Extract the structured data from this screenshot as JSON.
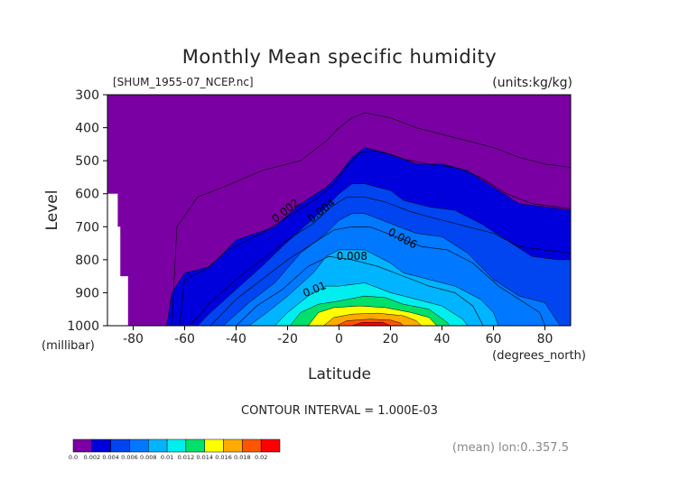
{
  "chart_data": {
    "type": "contour",
    "title": "Monthly Mean specific humidity",
    "file_label": "[SHUM_1955-07_NCEP.nc]",
    "units_label": "(units:kg/kg)",
    "xlabel": "Latitude",
    "ylabel": "Level",
    "x_unit_label": "(degrees_north)",
    "y_unit_label": "(millibar)",
    "xlim": [
      -90,
      90
    ],
    "ylim": [
      1000,
      300
    ],
    "x_ticks": [
      -80,
      -60,
      -40,
      -20,
      0,
      20,
      40,
      60,
      80
    ],
    "y_ticks": [
      300,
      400,
      500,
      600,
      700,
      800,
      900,
      1000
    ],
    "contour_interval_text": "CONTOUR INTERVAL = 1.000E-03",
    "footer_note": "(mean) lon:0..357.5",
    "contour_labels": [
      {
        "text": "0.002",
        "x": -20,
        "y": 660,
        "angle": -38
      },
      {
        "text": "0.004",
        "x": -6,
        "y": 660,
        "angle": -38
      },
      {
        "text": "0.006",
        "x": 24,
        "y": 745,
        "angle": 28
      },
      {
        "text": "0.008",
        "x": 5,
        "y": 800,
        "angle": 0
      },
      {
        "text": "0.01",
        "x": -9,
        "y": 900,
        "angle": -22
      }
    ],
    "colorbar": {
      "labels": [
        "0.0",
        "0.002",
        "0.004",
        "0.006",
        "0.008",
        "0.01",
        "0.012",
        "0.014",
        "0.016",
        "0.018",
        "0.02"
      ],
      "colors": [
        "#7b00a3",
        "#0000dd",
        "#0045f0",
        "#0078ff",
        "#00b4ff",
        "#00eeee",
        "#00e06a",
        "#ffff00",
        "#ffaa00",
        "#ff5500",
        "#ff0000"
      ]
    },
    "levels": [
      {
        "v": 0.001,
        "color": "#0000dd",
        "poly": [
          [
            -67,
            1000
          ],
          [
            -65,
            900
          ],
          [
            -60,
            840
          ],
          [
            -50,
            820
          ],
          [
            -40,
            740
          ],
          [
            -25,
            700
          ],
          [
            -15,
            630
          ],
          [
            -5,
            580
          ],
          [
            0,
            540
          ],
          [
            5,
            490
          ],
          [
            10,
            460
          ],
          [
            20,
            480
          ],
          [
            30,
            510
          ],
          [
            40,
            510
          ],
          [
            50,
            530
          ],
          [
            60,
            580
          ],
          [
            70,
            630
          ],
          [
            80,
            640
          ],
          [
            90,
            650
          ],
          [
            90,
            1000
          ]
        ]
      },
      {
        "v": 0.002,
        "color": "#0045f0",
        "poly": [
          [
            -55,
            1000
          ],
          [
            -50,
            960
          ],
          [
            -40,
            890
          ],
          [
            -30,
            820
          ],
          [
            -22,
            760
          ],
          [
            -15,
            710
          ],
          [
            -5,
            640
          ],
          [
            0,
            600
          ],
          [
            5,
            570
          ],
          [
            10,
            570
          ],
          [
            20,
            590
          ],
          [
            25,
            620
          ],
          [
            35,
            640
          ],
          [
            45,
            650
          ],
          [
            55,
            690
          ],
          [
            65,
            740
          ],
          [
            75,
            790
          ],
          [
            85,
            800
          ],
          [
            90,
            800
          ],
          [
            90,
            1000
          ]
        ]
      },
      {
        "v": 0.003,
        "color": "#0078ff",
        "poly": [
          [
            -45,
            1000
          ],
          [
            -35,
            930
          ],
          [
            -25,
            870
          ],
          [
            -15,
            780
          ],
          [
            -5,
            720
          ],
          [
            0,
            680
          ],
          [
            5,
            660
          ],
          [
            10,
            660
          ],
          [
            20,
            690
          ],
          [
            30,
            720
          ],
          [
            40,
            730
          ],
          [
            50,
            780
          ],
          [
            60,
            860
          ],
          [
            70,
            910
          ],
          [
            80,
            930
          ],
          [
            85,
            990
          ],
          [
            86,
            1000
          ]
        ]
      },
      {
        "v": 0.004,
        "color": "#00b4ff",
        "poly": [
          [
            -35,
            1000
          ],
          [
            -28,
            960
          ],
          [
            -20,
            910
          ],
          [
            -10,
            840
          ],
          [
            -5,
            790
          ],
          [
            0,
            770
          ],
          [
            10,
            770
          ],
          [
            20,
            810
          ],
          [
            25,
            840
          ],
          [
            35,
            860
          ],
          [
            45,
            880
          ],
          [
            55,
            920
          ],
          [
            60,
            960
          ],
          [
            62,
            1000
          ]
        ]
      },
      {
        "v": 0.005,
        "color": "#00eeee",
        "poly": [
          [
            -25,
            1000
          ],
          [
            -20,
            960
          ],
          [
            -12,
            910
          ],
          [
            -5,
            880
          ],
          [
            0,
            880
          ],
          [
            10,
            870
          ],
          [
            20,
            900
          ],
          [
            30,
            920
          ],
          [
            40,
            940
          ],
          [
            48,
            980
          ],
          [
            50,
            1000
          ]
        ]
      },
      {
        "v": 0.006,
        "color": "#00e06a",
        "poly": [
          [
            -19,
            1000
          ],
          [
            -15,
            960
          ],
          [
            -8,
            935
          ],
          [
            0,
            925
          ],
          [
            10,
            910
          ],
          [
            18,
            915
          ],
          [
            25,
            935
          ],
          [
            35,
            950
          ],
          [
            42,
            990
          ],
          [
            43,
            1000
          ]
        ]
      },
      {
        "v": 0.007,
        "color": "#ffff00",
        "poly": [
          [
            -12,
            1000
          ],
          [
            -8,
            960
          ],
          [
            -2,
            945
          ],
          [
            8,
            940
          ],
          [
            18,
            945
          ],
          [
            28,
            960
          ],
          [
            35,
            975
          ],
          [
            38,
            1000
          ]
        ]
      },
      {
        "v": 0.008,
        "color": "#ffaa00",
        "poly": [
          [
            -6,
            1000
          ],
          [
            -2,
            975
          ],
          [
            5,
            965
          ],
          [
            15,
            962
          ],
          [
            25,
            970
          ],
          [
            30,
            985
          ],
          [
            32,
            1000
          ]
        ]
      },
      {
        "v": 0.009,
        "color": "#ff5500",
        "poly": [
          [
            -1,
            1000
          ],
          [
            3,
            985
          ],
          [
            12,
            980
          ],
          [
            20,
            983
          ],
          [
            24,
            992
          ],
          [
            25,
            1000
          ]
        ]
      },
      {
        "v": 0.01,
        "color": "#ff0000",
        "poly": [
          [
            5,
            1000
          ],
          [
            9,
            990
          ],
          [
            17,
            990
          ],
          [
            20,
            1000
          ]
        ]
      }
    ],
    "lines": [
      [
        [
          -65,
          1000
        ],
        [
          -63,
          700
        ],
        [
          -55,
          610
        ],
        [
          -45,
          580
        ],
        [
          -30,
          530
        ],
        [
          -15,
          500
        ],
        [
          -5,
          440
        ],
        [
          0,
          400
        ],
        [
          5,
          370
        ],
        [
          10,
          355
        ],
        [
          20,
          370
        ],
        [
          30,
          400
        ],
        [
          40,
          420
        ],
        [
          50,
          440
        ],
        [
          60,
          460
        ],
        [
          70,
          490
        ],
        [
          80,
          510
        ],
        [
          90,
          520
        ]
      ],
      [
        [
          -62,
          1000
        ],
        [
          -60,
          860
        ],
        [
          -52,
          830
        ],
        [
          -43,
          770
        ],
        [
          -30,
          720
        ],
        [
          -18,
          660
        ],
        [
          -8,
          610
        ],
        [
          -2,
          570
        ],
        [
          3,
          520
        ],
        [
          8,
          475
        ],
        [
          15,
          470
        ],
        [
          25,
          495
        ],
        [
          35,
          510
        ],
        [
          45,
          520
        ],
        [
          55,
          550
        ],
        [
          65,
          600
        ],
        [
          75,
          630
        ],
        [
          90,
          645
        ]
      ],
      [
        [
          -58,
          1000
        ],
        [
          -50,
          930
        ],
        [
          -40,
          860
        ],
        [
          -30,
          800
        ],
        [
          -20,
          740
        ],
        [
          -10,
          690
        ],
        [
          -3,
          640
        ],
        [
          3,
          610
        ],
        [
          10,
          610
        ],
        [
          18,
          625
        ],
        [
          28,
          655
        ],
        [
          40,
          680
        ],
        [
          50,
          700
        ],
        [
          60,
          720
        ],
        [
          70,
          760
        ],
        [
          80,
          770
        ],
        [
          90,
          780
        ]
      ],
      [
        [
          -50,
          1000
        ],
        [
          -40,
          920
        ],
        [
          -30,
          860
        ],
        [
          -20,
          800
        ],
        [
          -10,
          750
        ],
        [
          -2,
          710
        ],
        [
          5,
          700
        ],
        [
          12,
          700
        ],
        [
          22,
          730
        ],
        [
          32,
          760
        ],
        [
          42,
          770
        ],
        [
          52,
          810
        ],
        [
          62,
          880
        ],
        [
          72,
          930
        ],
        [
          78,
          960
        ],
        [
          80,
          1000
        ]
      ],
      [
        [
          -40,
          1000
        ],
        [
          -32,
          940
        ],
        [
          -22,
          890
        ],
        [
          -12,
          820
        ],
        [
          -4,
          790
        ],
        [
          5,
          800
        ],
        [
          15,
          820
        ],
        [
          25,
          850
        ],
        [
          35,
          880
        ],
        [
          45,
          900
        ],
        [
          52,
          940
        ],
        [
          56,
          1000
        ]
      ]
    ],
    "white_mask_steps": [
      [
        -90,
        600
      ],
      [
        -88,
        700
      ],
      [
        -85,
        850
      ],
      [
        -82,
        1000
      ]
    ]
  }
}
